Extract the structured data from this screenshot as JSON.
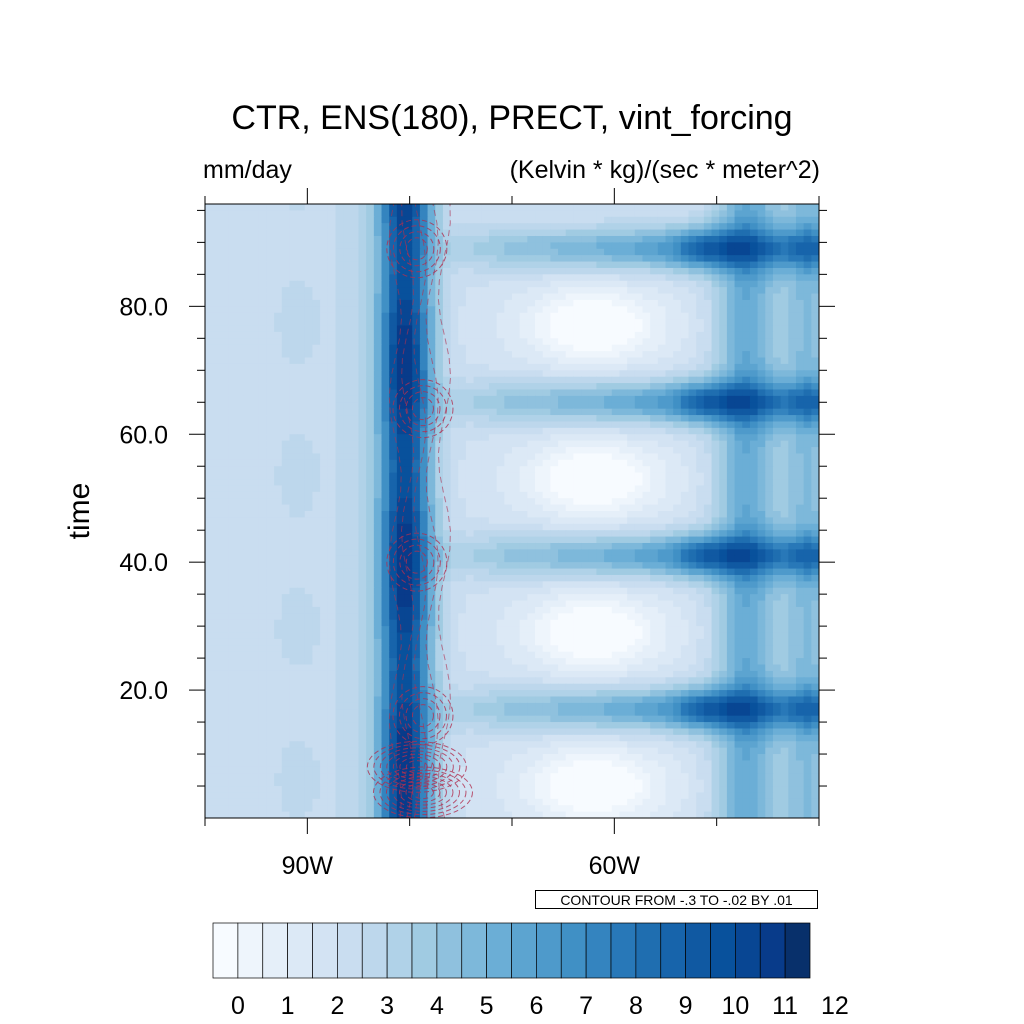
{
  "chart_data": {
    "type": "heatmap",
    "title": "CTR, ENS(180), PRECT, vint_forcing",
    "left_string": "mm/day",
    "right_string": "(Kelvin * kg)/(sec * meter^2)",
    "ylabel": "time",
    "xlabel": "",
    "xlim": [
      100,
      40
    ],
    "ylim": [
      0,
      96
    ],
    "x_ticks": [
      {
        "value": 90,
        "label": "90W"
      },
      {
        "value": 60,
        "label": "60W"
      }
    ],
    "y_ticks": [
      {
        "value": 20,
        "label": "20.0"
      },
      {
        "value": 40,
        "label": "40.0"
      },
      {
        "value": 60,
        "label": "60.0"
      },
      {
        "value": 80,
        "label": "80.0"
      }
    ],
    "colorbar": {
      "levels": [
        0,
        0.5,
        1,
        1.5,
        2,
        2.5,
        3,
        3.5,
        4,
        4.5,
        5,
        5.5,
        6,
        6.5,
        7,
        7.5,
        8,
        8.5,
        9,
        9.5,
        10,
        10.5,
        11,
        11.5,
        12
      ],
      "labels": [
        "0",
        "1",
        "2",
        "3",
        "4",
        "5",
        "6",
        "7",
        "8",
        "9",
        "10",
        "11",
        "12"
      ],
      "colors": [
        "#f7fbff",
        "#eef5fc",
        "#e5eff9",
        "#dce9f6",
        "#d3e3f3",
        "#c9ddf0",
        "#bdd7ec",
        "#b0d2e8",
        "#a0cbe2",
        "#8fc1de",
        "#7db8da",
        "#6baed6",
        "#5ca4d0",
        "#4e9acb",
        "#4090c5",
        "#3484bf",
        "#2878b8",
        "#1f6eb0",
        "#1764ab",
        "#1059a2",
        "#08519c",
        "#084693",
        "#083b8a",
        "#08306b"
      ]
    },
    "contour_label": "CONTOUR FROM -.3 TO -.02 BY .01",
    "precip_field": {
      "description_axes": "lon in degrees W, time",
      "background_mm_day": 2.5,
      "core_band": {
        "lon": 80.5,
        "min_mm_day": 10.5,
        "max_mm_day": 12
      },
      "east_band": {
        "lon": 47,
        "mm_day": 6
      },
      "bursts_time": [
        17,
        41,
        65,
        89
      ],
      "burst_east_max_lon": 51,
      "burst_east_max_mm_day": 9.5,
      "dry_pockets_time": [
        5,
        29,
        53,
        77
      ],
      "dry_pocket_min_mm_day": 1
    },
    "forcing_contours": {
      "min": -0.3,
      "max": -0.02,
      "interval": 0.01,
      "style": "dashed",
      "color": "#b03050",
      "center_lon": 79,
      "centers_time": [
        4,
        8,
        16,
        40,
        64,
        89
      ]
    }
  }
}
